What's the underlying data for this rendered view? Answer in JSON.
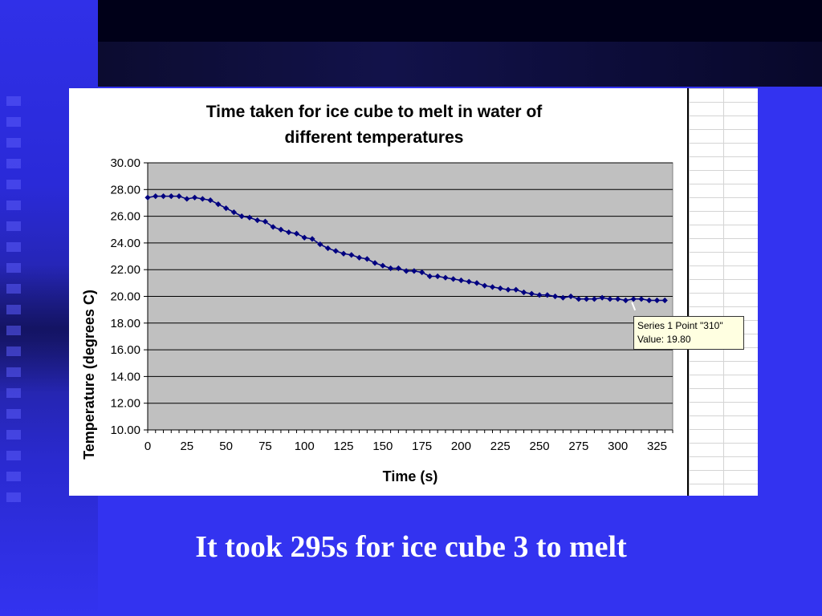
{
  "slide": {
    "caption": "It took 295s for ice cube 3 to melt"
  },
  "colors": {
    "background": "#3333f0",
    "plot_area": "#c0c0c0",
    "series": "#000080"
  },
  "tooltip": {
    "line1": "Series 1 Point \"310\"",
    "line2": "Value: 19.80"
  },
  "chart_data": {
    "type": "line",
    "title": "Time taken for ice cube to melt in water of different temperatures",
    "title_lines": [
      "Time taken for ice cube to melt in water of",
      "different temperatures"
    ],
    "xlabel": "Time (s)",
    "ylabel": "Temperature (degrees C)",
    "xlim": [
      0,
      335
    ],
    "ylim": [
      10,
      30
    ],
    "x_ticks": [
      "0",
      "25",
      "50",
      "75",
      "100",
      "125",
      "150",
      "175",
      "200",
      "225",
      "250",
      "275",
      "300",
      "325"
    ],
    "y_ticks": [
      "10.00",
      "12.00",
      "14.00",
      "16.00",
      "18.00",
      "20.00",
      "22.00",
      "24.00",
      "26.00",
      "28.00",
      "30.00"
    ],
    "grid": true,
    "legend": "none",
    "series": [
      {
        "marker": "diamond",
        "x": [
          0,
          5,
          10,
          15,
          20,
          25,
          30,
          35,
          40,
          45,
          50,
          55,
          60,
          65,
          70,
          75,
          80,
          85,
          90,
          95,
          100,
          105,
          110,
          115,
          120,
          125,
          130,
          135,
          140,
          145,
          150,
          155,
          160,
          165,
          170,
          175,
          180,
          185,
          190,
          195,
          200,
          205,
          210,
          215,
          220,
          225,
          230,
          235,
          240,
          245,
          250,
          255,
          260,
          265,
          270,
          275,
          280,
          285,
          290,
          295,
          300,
          305,
          310,
          315,
          320,
          325,
          330
        ],
        "values": [
          27.4,
          27.5,
          27.5,
          27.5,
          27.5,
          27.3,
          27.4,
          27.3,
          27.2,
          26.9,
          26.6,
          26.3,
          26.0,
          25.9,
          25.7,
          25.6,
          25.2,
          25.0,
          24.8,
          24.7,
          24.4,
          24.3,
          23.9,
          23.6,
          23.4,
          23.2,
          23.1,
          22.9,
          22.8,
          22.5,
          22.3,
          22.1,
          22.1,
          21.9,
          21.9,
          21.8,
          21.5,
          21.5,
          21.4,
          21.3,
          21.2,
          21.1,
          21.0,
          20.8,
          20.7,
          20.6,
          20.5,
          20.5,
          20.3,
          20.2,
          20.1,
          20.1,
          20.0,
          19.9,
          20.0,
          19.8,
          19.8,
          19.8,
          19.9,
          19.8,
          19.8,
          19.7,
          19.8,
          19.8,
          19.7,
          19.7,
          19.7
        ]
      }
    ]
  }
}
